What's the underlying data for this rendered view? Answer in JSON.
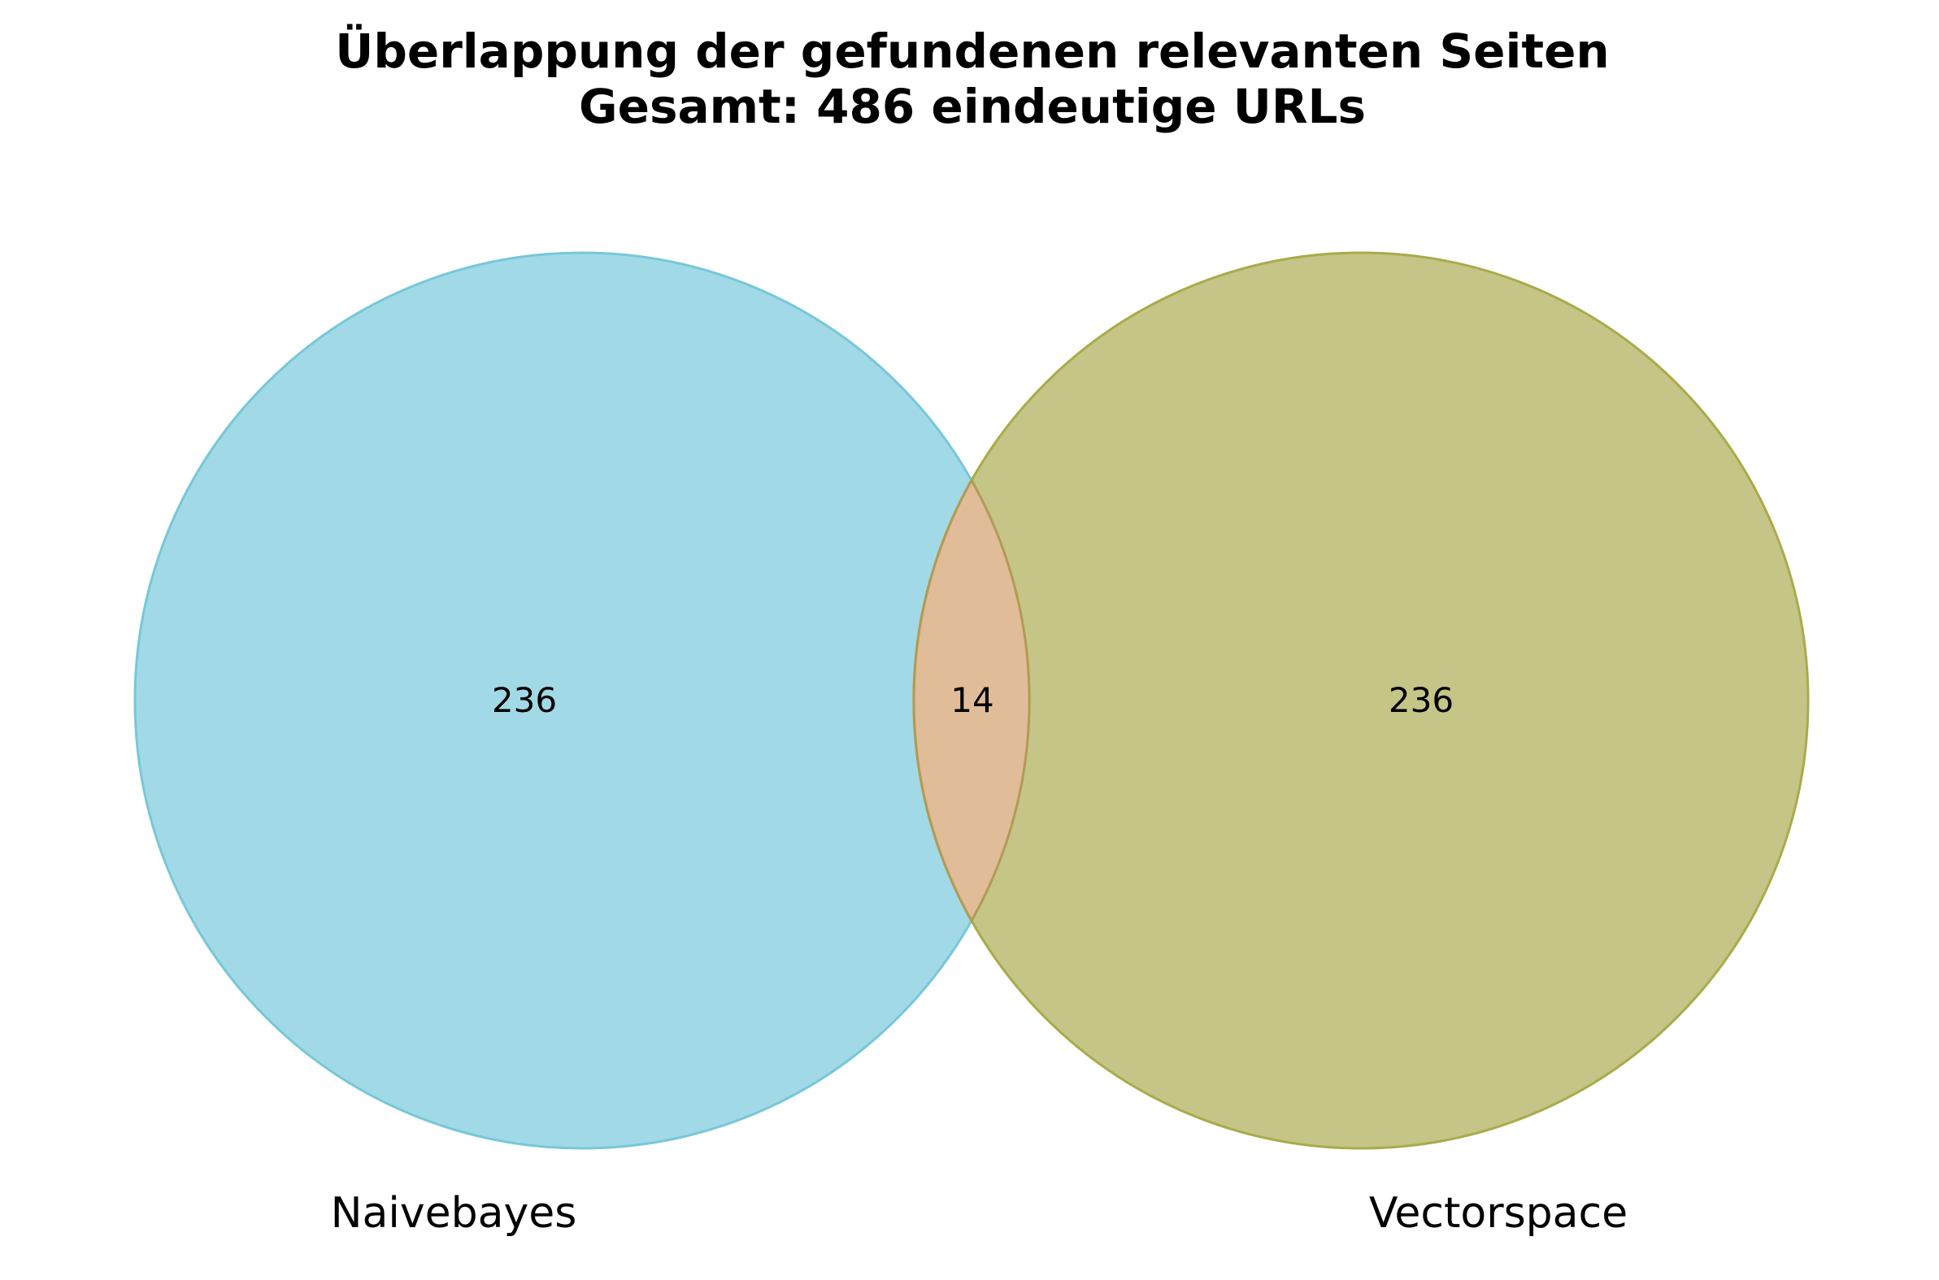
{
  "title": {
    "line1": "Überlappung der gefundenen relevanten Seiten",
    "line2": "Gesamt: 486 eindeutige URLs"
  },
  "chart_data": {
    "type": "venn",
    "sets": [
      {
        "name": "Naivebayes",
        "only": "236",
        "color": "#66c2d6"
      },
      {
        "name": "Vectorspace",
        "only": "236",
        "color": "#9fa135"
      }
    ],
    "intersection": {
      "value": "14",
      "color": "#e0bc98"
    },
    "total_unique": 486
  }
}
